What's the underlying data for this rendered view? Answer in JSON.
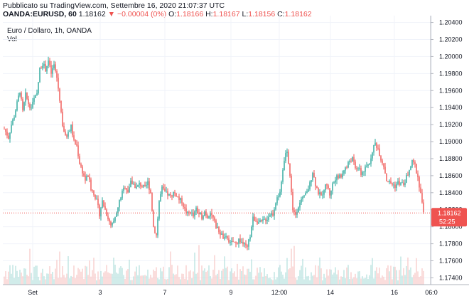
{
  "header": {
    "published": "Pubblicato su TradingView.com, Settembre 16, 2020 21:07:37 UTC",
    "symbol": "OANDA:EURUSD, 60",
    "last": "1.18162",
    "change": "−0.00004 (0%)",
    "o_label": "O:",
    "o_value": "1.18166",
    "h_label": "H:",
    "h_value": "1.18167",
    "l_label": "L:",
    "l_value": "1.18156",
    "c_label": "C:",
    "c_value": "1.18162"
  },
  "legend": {
    "title": "Euro / Dollaro, 1h, OANDA",
    "vol": "Vol"
  },
  "chart_data": {
    "type": "candlestick",
    "price_range": [
      1.1732,
      1.2048
    ],
    "y_ticks": [
      "1.20400",
      "1.20200",
      "1.20000",
      "1.19800",
      "1.19600",
      "1.19400",
      "1.19200",
      "1.19000",
      "1.18800",
      "1.18600",
      "1.18400",
      "1.18200",
      "1.18000",
      "1.17800",
      "1.17600",
      "1.17400"
    ],
    "x_ticks": [
      "Set",
      "3",
      "7",
      "9",
      "12:00",
      "14",
      "16",
      "06:0"
    ],
    "last_price_label": "1.18162",
    "countdown_label": "52:25",
    "colors": {
      "up": "#26a69a",
      "down": "#ef5350",
      "up_vol": "#b2dfdb",
      "down_vol": "#f7c6c5",
      "price_line": "#ef5350"
    },
    "path_points": [
      [
        0,
        1.1915
      ],
      [
        3,
        1.191
      ],
      [
        6,
        1.1905
      ],
      [
        10,
        1.192
      ],
      [
        14,
        1.193
      ],
      [
        18,
        1.1945
      ],
      [
        22,
        1.196
      ],
      [
        26,
        1.1935
      ],
      [
        30,
        1.1955
      ],
      [
        34,
        1.1945
      ],
      [
        38,
        1.194
      ],
      [
        42,
        1.195
      ],
      [
        46,
        1.1955
      ],
      [
        50,
        1.1985
      ],
      [
        54,
        1.1992
      ],
      [
        58,
        1.1985
      ],
      [
        62,
        1.1995
      ],
      [
        66,
        1.198
      ],
      [
        70,
        1.199
      ],
      [
        74,
        1.1975
      ],
      [
        78,
        1.195
      ],
      [
        82,
        1.192
      ],
      [
        86,
        1.1905
      ],
      [
        90,
        1.191
      ],
      [
        94,
        1.1918
      ],
      [
        98,
        1.19
      ],
      [
        102,
        1.1895
      ],
      [
        106,
        1.1875
      ],
      [
        110,
        1.1865
      ],
      [
        114,
        1.1855
      ],
      [
        118,
        1.186
      ],
      [
        122,
        1.1845
      ],
      [
        126,
        1.184
      ],
      [
        130,
        1.183
      ],
      [
        134,
        1.1815
      ],
      [
        138,
        1.183
      ],
      [
        142,
        1.182
      ],
      [
        146,
        1.181
      ],
      [
        150,
        1.18
      ],
      [
        154,
        1.1805
      ],
      [
        158,
        1.1815
      ],
      [
        162,
        1.183
      ],
      [
        166,
        1.184
      ],
      [
        170,
        1.1848
      ],
      [
        174,
        1.1842
      ],
      [
        178,
        1.1852
      ],
      [
        182,
        1.185
      ],
      [
        186,
        1.1846
      ],
      [
        190,
        1.185
      ],
      [
        194,
        1.1848
      ],
      [
        198,
        1.1845
      ],
      [
        202,
        1.1852
      ],
      [
        206,
        1.184
      ],
      [
        210,
        1.18
      ],
      [
        214,
        1.179
      ],
      [
        218,
        1.183
      ],
      [
        222,
        1.1845
      ],
      [
        226,
        1.184
      ],
      [
        230,
        1.1838
      ],
      [
        234,
        1.1835
      ],
      [
        238,
        1.184
      ],
      [
        242,
        1.1838
      ],
      [
        246,
        1.1832
      ],
      [
        250,
        1.183
      ],
      [
        254,
        1.182
      ],
      [
        258,
        1.1815
      ],
      [
        262,
        1.1818
      ],
      [
        266,
        1.1812
      ],
      [
        270,
        1.182
      ],
      [
        274,
        1.1815
      ],
      [
        278,
        1.1812
      ],
      [
        282,
        1.1818
      ],
      [
        286,
        1.1812
      ],
      [
        290,
        1.1818
      ],
      [
        294,
        1.181
      ],
      [
        298,
        1.18
      ],
      [
        302,
        1.1795
      ],
      [
        306,
        1.179
      ],
      [
        310,
        1.1785
      ],
      [
        314,
        1.1788
      ],
      [
        318,
        1.178
      ],
      [
        322,
        1.1782
      ],
      [
        326,
        1.178
      ],
      [
        330,
        1.1785
      ],
      [
        334,
        1.1782
      ],
      [
        338,
        1.1778
      ],
      [
        342,
        1.1775
      ],
      [
        346,
        1.179
      ],
      [
        350,
        1.181
      ],
      [
        354,
        1.1808
      ],
      [
        358,
        1.1805
      ],
      [
        362,
        1.1805
      ],
      [
        366,
        1.1808
      ],
      [
        370,
        1.181
      ],
      [
        374,
        1.1815
      ],
      [
        378,
        1.1815
      ],
      [
        382,
        1.183
      ],
      [
        386,
        1.1835
      ],
      [
        390,
        1.185
      ],
      [
        394,
        1.188
      ],
      [
        398,
        1.189
      ],
      [
        402,
        1.186
      ],
      [
        406,
        1.182
      ],
      [
        410,
        1.1815
      ],
      [
        414,
        1.1825
      ],
      [
        418,
        1.183
      ],
      [
        422,
        1.1835
      ],
      [
        426,
        1.184
      ],
      [
        430,
        1.185
      ],
      [
        434,
        1.1865
      ],
      [
        438,
        1.185
      ],
      [
        442,
        1.184
      ],
      [
        446,
        1.1835
      ],
      [
        450,
        1.1845
      ],
      [
        454,
        1.185
      ],
      [
        458,
        1.1838
      ],
      [
        462,
        1.185
      ],
      [
        466,
        1.1855
      ],
      [
        470,
        1.186
      ],
      [
        474,
        1.1858
      ],
      [
        478,
        1.1868
      ],
      [
        482,
        1.187
      ],
      [
        486,
        1.1878
      ],
      [
        490,
        1.188
      ],
      [
        494,
        1.1868
      ],
      [
        498,
        1.187
      ],
      [
        502,
        1.1862
      ],
      [
        506,
        1.1866
      ],
      [
        510,
        1.187
      ],
      [
        514,
        1.1875
      ],
      [
        518,
        1.189
      ],
      [
        522,
        1.1898
      ],
      [
        526,
        1.1892
      ],
      [
        530,
        1.188
      ],
      [
        534,
        1.1872
      ],
      [
        538,
        1.1855
      ],
      [
        542,
        1.1852
      ],
      [
        546,
        1.185
      ],
      [
        550,
        1.1848
      ],
      [
        554,
        1.1852
      ],
      [
        558,
        1.185
      ],
      [
        562,
        1.185
      ],
      [
        566,
        1.1858
      ],
      [
        570,
        1.1866
      ],
      [
        574,
        1.1876
      ],
      [
        578,
        1.1872
      ],
      [
        582,
        1.1858
      ],
      [
        586,
        1.184
      ],
      [
        590,
        1.1815
      ],
      [
        594,
        1.18
      ],
      [
        597,
        1.1816
      ]
    ]
  }
}
